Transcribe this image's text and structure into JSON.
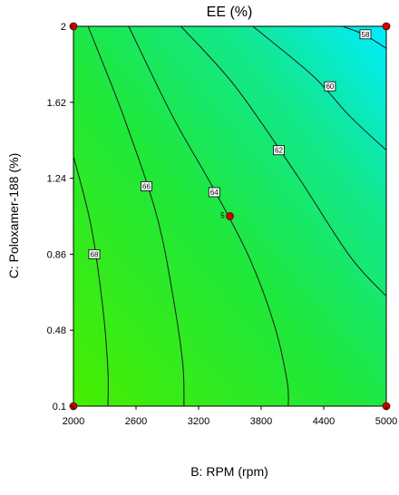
{
  "chart_data": {
    "type": "contour",
    "title": "EE (%)",
    "xlabel": "B: RPM (rpm)",
    "ylabel": "C: Poloxamer-188 (%)",
    "xlim": [
      2000,
      5000
    ],
    "ylim": [
      0.1,
      2
    ],
    "x_ticks": [
      "2000",
      "2600",
      "3200",
      "3800",
      "4400",
      "5000"
    ],
    "y_ticks": [
      "0.1",
      "0.48",
      "0.86",
      "1.24",
      "1.62",
      "2"
    ],
    "colors": {
      "high": "#3ef000",
      "low": "#00e6ff",
      "line": "#1a1a1a",
      "point": "#cc0000"
    },
    "contours": [
      {
        "level": "68",
        "label_at": [
          2200,
          0.86
        ],
        "points": [
          [
            2000,
            1.35
          ],
          [
            2170,
            1.0
          ],
          [
            2280,
            0.6
          ],
          [
            2330,
            0.28
          ],
          [
            2330,
            0.1
          ]
        ]
      },
      {
        "level": "66",
        "label_at": [
          2700,
          1.2
        ],
        "points": [
          [
            2140,
            2.0
          ],
          [
            2480,
            1.55
          ],
          [
            2800,
            1.05
          ],
          [
            2970,
            0.6
          ],
          [
            3050,
            0.3
          ],
          [
            3060,
            0.1
          ]
        ]
      },
      {
        "level": "64",
        "label_at": [
          3350,
          1.17
        ],
        "points": [
          [
            2530,
            2.0
          ],
          [
            2950,
            1.55
          ],
          [
            3330,
            1.2
          ],
          [
            3680,
            0.85
          ],
          [
            3930,
            0.5
          ],
          [
            4050,
            0.22
          ],
          [
            4060,
            0.1
          ]
        ]
      },
      {
        "level": "62",
        "label_at": [
          3970,
          1.38
        ],
        "points": [
          [
            3030,
            2.0
          ],
          [
            3550,
            1.7
          ],
          [
            4150,
            1.25
          ],
          [
            4650,
            0.85
          ],
          [
            5000,
            0.65
          ]
        ]
      },
      {
        "level": "60",
        "label_at": [
          4460,
          1.7
        ],
        "points": [
          [
            3720,
            2.0
          ],
          [
            4300,
            1.75
          ],
          [
            4650,
            1.55
          ],
          [
            5000,
            1.38
          ]
        ]
      },
      {
        "level": "58",
        "label_at": [
          4800,
          1.96
        ],
        "points": [
          [
            4580,
            2.0
          ],
          [
            4780,
            1.96
          ],
          [
            5000,
            1.89
          ]
        ]
      }
    ],
    "design_points": [
      {
        "x": 2000,
        "y": 2
      },
      {
        "x": 5000,
        "y": 2
      },
      {
        "x": 2000,
        "y": 0.1
      },
      {
        "x": 5000,
        "y": 0.1
      },
      {
        "x": 3500,
        "y": 1.05,
        "label": "5"
      }
    ]
  }
}
